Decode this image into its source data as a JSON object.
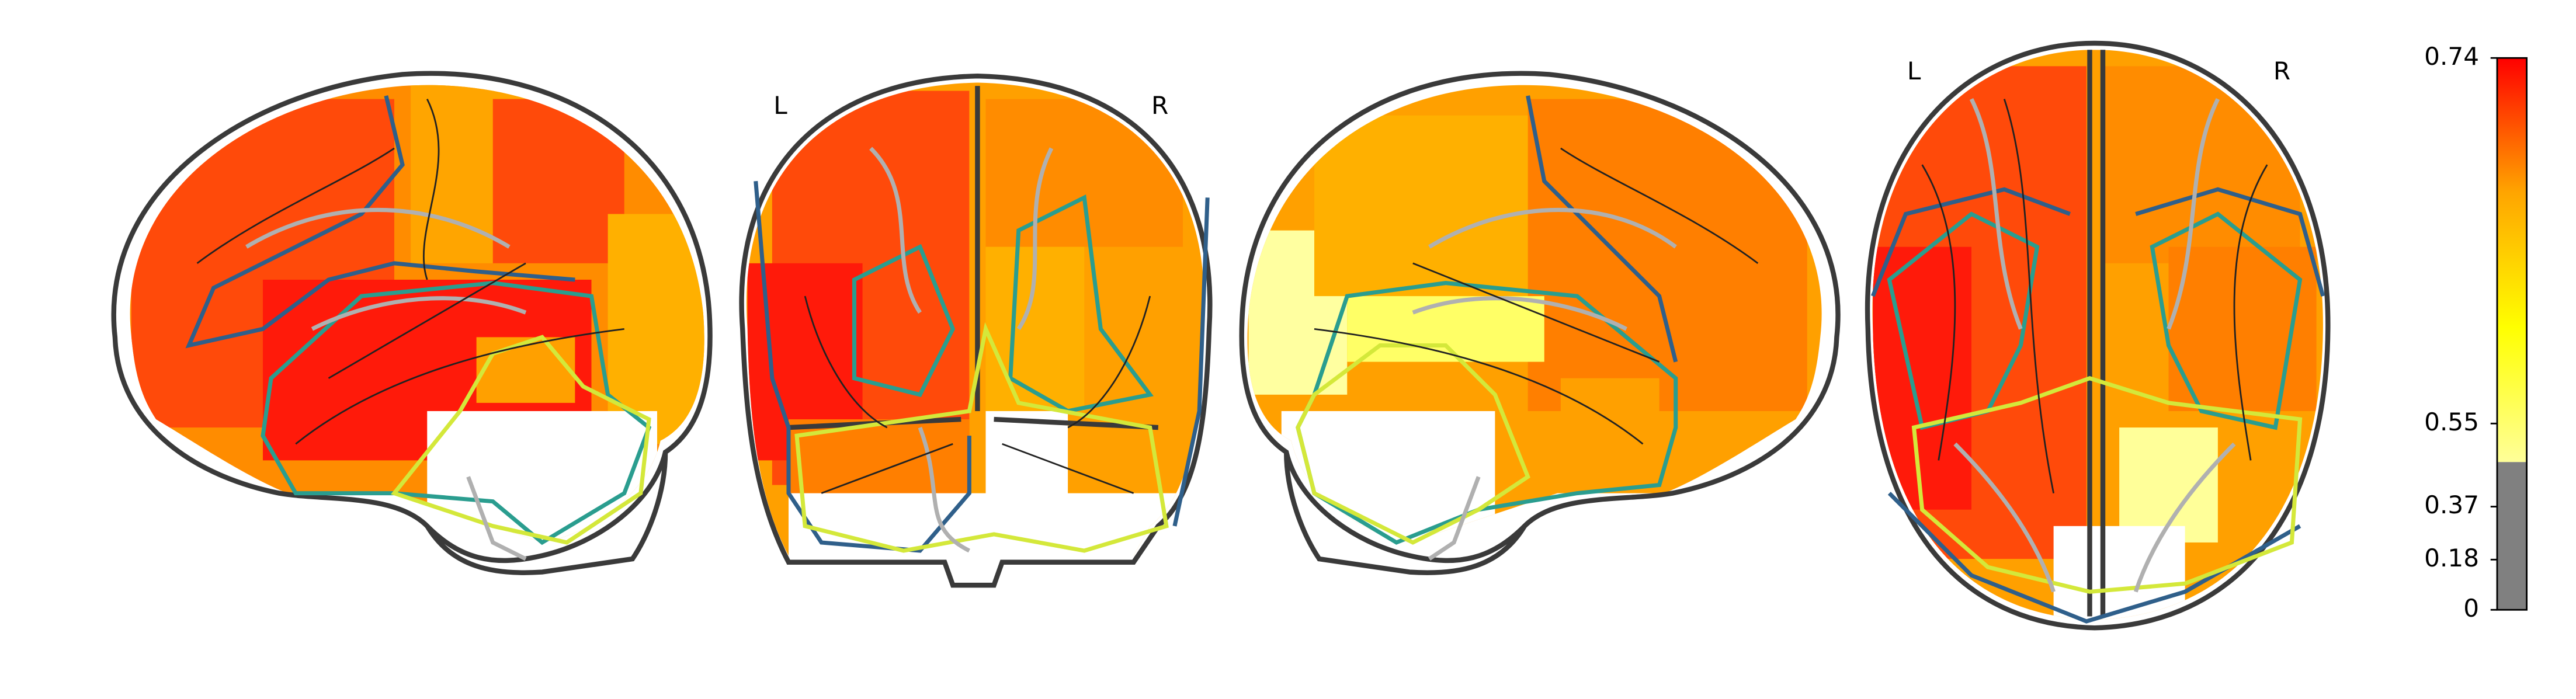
{
  "chart_data": {
    "type": "colorbar",
    "annotations": [
      "L",
      "R",
      "L",
      "R"
    ],
    "ylim": [
      0,
      0.74
    ],
    "yticks": [
      0,
      0.18,
      0.37,
      0.55,
      0.74
    ],
    "threshold": 0.53,
    "below_color": "#808080",
    "colors": [
      "#ffff99",
      "#ffff00",
      "#ffa500",
      "#ff0000"
    ]
  }
}
